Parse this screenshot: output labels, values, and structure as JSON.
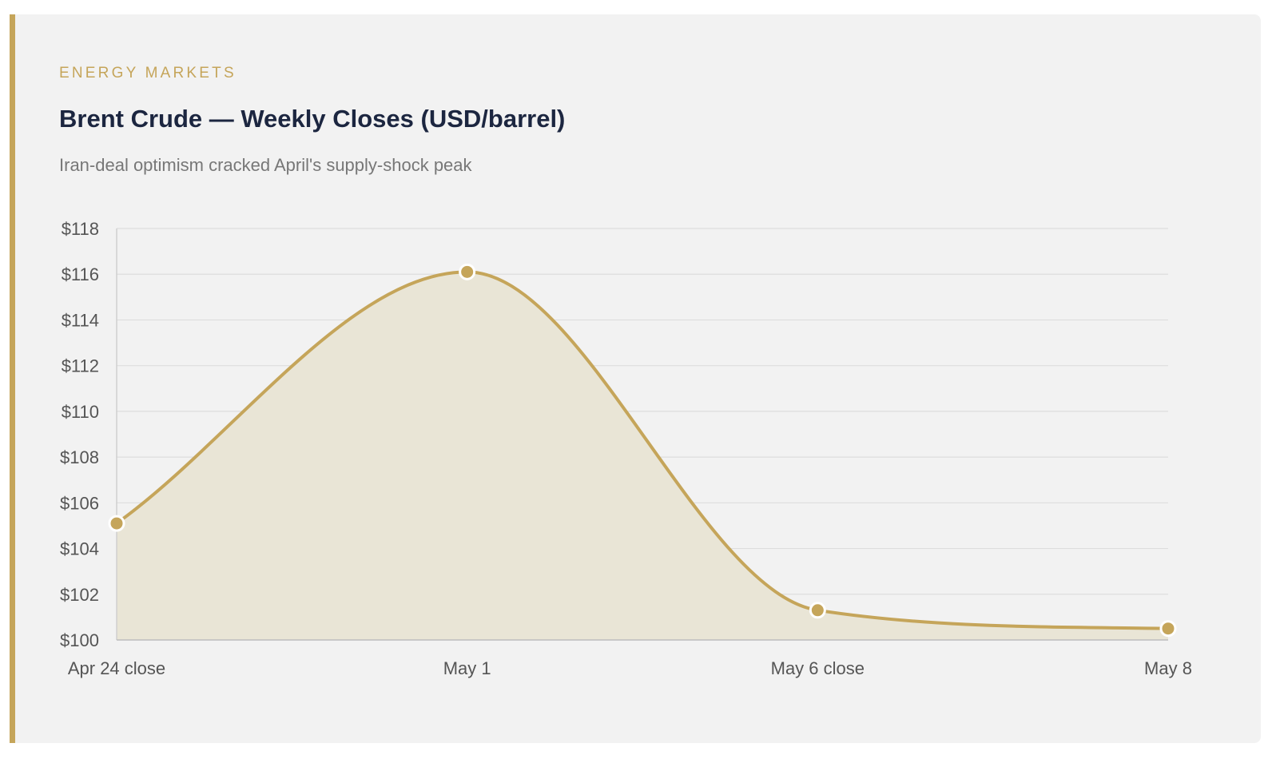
{
  "header": {
    "eyebrow": "ENERGY MARKETS",
    "title": "Brent Crude — Weekly Closes (USD/barrel)",
    "subtitle": "Iran-deal optimism cracked April's supply-shock peak"
  },
  "colors": {
    "accent": "#c5a55a",
    "fill": "#e9e5d6",
    "grid": "#dddddd",
    "title": "#1c2640"
  },
  "chart_data": {
    "type": "area",
    "categories": [
      "Apr 24 close",
      "May 1",
      "May 6 close",
      "May 8"
    ],
    "series": [
      {
        "values": [
          105.1,
          116.1,
          101.3,
          100.5
        ]
      }
    ],
    "yticks": [
      "$100",
      "$102",
      "$104",
      "$106",
      "$108",
      "$110",
      "$112",
      "$114",
      "$116",
      "$118"
    ],
    "ylim": [
      100,
      118
    ],
    "ytick_step": 2,
    "grid": true,
    "xlabel": "",
    "ylabel": ""
  }
}
